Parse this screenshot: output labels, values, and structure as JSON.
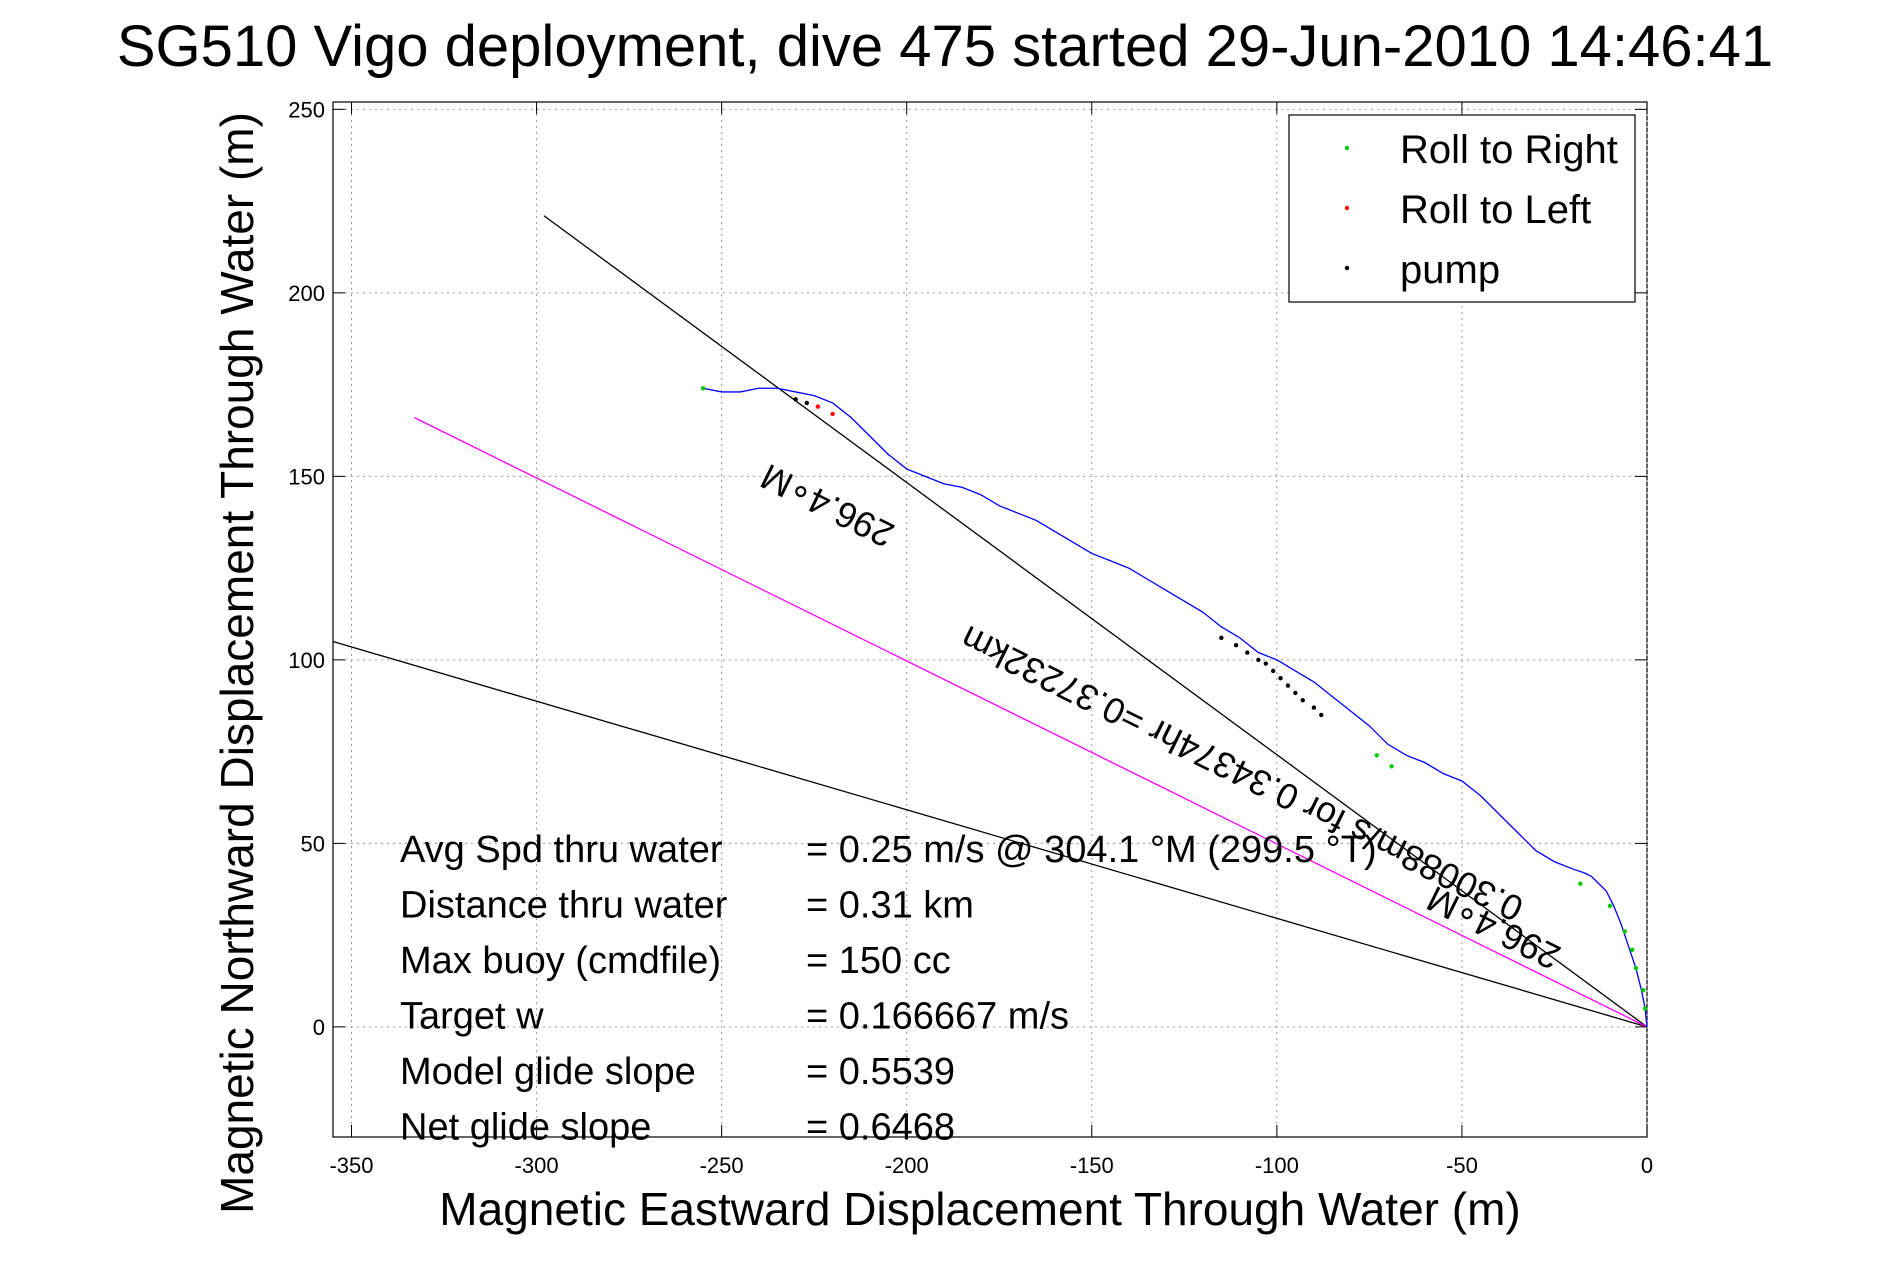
{
  "chart_data": {
    "type": "line",
    "title": "SG510 Vigo deployment, dive 475 started 29-Jun-2010 14:46:41",
    "xlabel": "Magnetic Eastward Displacement Through Water (m)",
    "ylabel": "Magnetic Northward Displacement Through Water (m)",
    "xlim": [
      -355,
      0
    ],
    "ylim": [
      -30,
      252
    ],
    "xticks": [
      -350,
      -300,
      -250,
      -200,
      -150,
      -100,
      -50,
      0
    ],
    "yticks": [
      0,
      50,
      100,
      150,
      200,
      250
    ],
    "grid": true,
    "legend": {
      "placement": "top-right",
      "entries": [
        {
          "label": "Roll to Right",
          "color": "#00cc00"
        },
        {
          "label": "Roll to Left",
          "color": "#ff0000"
        },
        {
          "label": "pump",
          "color": "#000000"
        }
      ]
    },
    "series": [
      {
        "name": "track",
        "color": "#0000ff",
        "x": [
          0,
          -0.5,
          -1.5,
          -3,
          -5,
          -7,
          -9,
          -11,
          -13,
          -15,
          -17,
          -20,
          -25,
          -30,
          -35,
          -40,
          -45,
          -50,
          -55,
          -60,
          -65,
          -70,
          -75,
          -80,
          -85,
          -90,
          -95,
          -100,
          -105,
          -110,
          -115,
          -120,
          -125,
          -130,
          -135,
          -140,
          -145,
          -150,
          -155,
          -160,
          -165,
          -170,
          -175,
          -180,
          -185,
          -190,
          -195,
          -200,
          -205,
          -210,
          -215,
          -220,
          -225,
          -230,
          -235,
          -240,
          -245,
          -250,
          -255
        ],
        "y": [
          0,
          5,
          10,
          16,
          22,
          28,
          33,
          37,
          39,
          41,
          42,
          43,
          45,
          48,
          53,
          58,
          63,
          67,
          69,
          72,
          74,
          77,
          82,
          86,
          90,
          94,
          97,
          100,
          102,
          106,
          109,
          113,
          116,
          119,
          122,
          125,
          127,
          129,
          132,
          135,
          138,
          140,
          142,
          145,
          147,
          148,
          150,
          152,
          156,
          161,
          166,
          170,
          172,
          173,
          174,
          174,
          173,
          173,
          174
        ]
      }
    ],
    "reference_lines": [
      {
        "name": "black-line-upper",
        "color": "#000000",
        "x": [
          -298,
          0
        ],
        "y": [
          221,
          0
        ]
      },
      {
        "name": "black-line-lower",
        "color": "#000000",
        "x": [
          -355,
          0
        ],
        "y": [
          105,
          0
        ]
      },
      {
        "name": "magenta-line",
        "color": "#ff00ff",
        "x": [
          -333,
          0
        ],
        "y": [
          166,
          0
        ]
      }
    ],
    "markers": {
      "roll_right": [
        [
          -255,
          174
        ],
        [
          -73,
          74
        ],
        [
          -69,
          71
        ],
        [
          -18,
          39
        ],
        [
          -10,
          33
        ],
        [
          -6,
          26
        ],
        [
          -4,
          21
        ],
        [
          -3,
          16
        ],
        [
          -1,
          10
        ],
        [
          -0.5,
          5
        ]
      ],
      "roll_left": [
        [
          -220,
          167
        ],
        [
          -224,
          169
        ]
      ],
      "pump": [
        [
          -230,
          171
        ],
        [
          -227,
          170
        ],
        [
          -115,
          106
        ],
        [
          -111,
          104
        ],
        [
          -108,
          102
        ],
        [
          -105,
          100
        ],
        [
          -103,
          99
        ],
        [
          -101,
          97
        ],
        [
          -99,
          95
        ],
        [
          -97,
          93
        ],
        [
          -95,
          91
        ],
        [
          -93,
          89
        ],
        [
          -90,
          87
        ],
        [
          -88,
          85
        ]
      ]
    },
    "line_labels": [
      {
        "text": "296.4∘M",
        "x": -220,
        "y": 145
      },
      {
        "text": "0.30088m/s for 0.34374hr =0.37232km",
        "x": -108,
        "y": 72
      },
      {
        "text": "296.4∘M",
        "x": -40,
        "y": 30
      }
    ],
    "annotations": [
      {
        "label": "Avg Spd thru water",
        "value": "=  0.25 m/s @ 304.1  °M (299.5 °T)"
      },
      {
        "label": "Distance thru water",
        "value": "=  0.31 km"
      },
      {
        "label": "Max buoy (cmdfile)",
        "value": "= 150 cc"
      },
      {
        "label": "Target w",
        "value": "= 0.166667 m/s"
      },
      {
        "label": "Model glide slope",
        "value": "= 0.5539"
      },
      {
        "label": "Net glide slope",
        "value": "= 0.6468"
      }
    ]
  }
}
